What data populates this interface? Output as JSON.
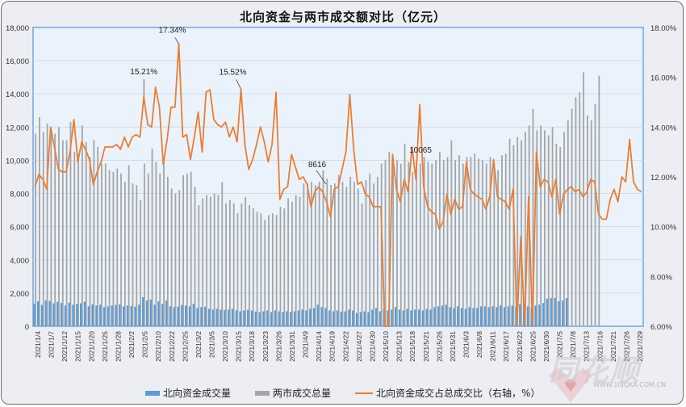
{
  "title": "北向资金与两市成交额对比（亿元）",
  "legend": [
    {
      "label": "北向资金成交量",
      "color": "#5b9bd5",
      "type": "bar"
    },
    {
      "label": "两市成交总量",
      "color": "#a5a5a5",
      "type": "bar"
    },
    {
      "label": "北向资金成交占总成交比（右轴，%）",
      "color": "#ed7d31",
      "type": "line"
    }
  ],
  "watermark": {
    "brand": "同花顺",
    "url": "WWW.10JQKA.COM.CN"
  },
  "chart_data": {
    "type": "bar+line",
    "title": "北向资金与两市成交额对比（亿元）",
    "xlabel": "",
    "ylabel": "",
    "y_left": {
      "ticks": [
        "0",
        "2,000",
        "4,000",
        "6,000",
        "8,000",
        "10,000",
        "12,000",
        "14,000",
        "16,000",
        "18,000"
      ],
      "range": [
        0,
        18000
      ]
    },
    "y_right": {
      "ticks": [
        "6.00%",
        "8.00%",
        "10.00%",
        "12.00%",
        "14.00%",
        "16.00%",
        "18.00%"
      ],
      "range": [
        6,
        18
      ]
    },
    "x_tick_labels": [
      "2021/1/4",
      "2021/1/7",
      "2021/1/12",
      "2021/1/15",
      "2021/1/20",
      "2021/1/25",
      "2021/1/28",
      "2021/2/2",
      "2021/2/5",
      "2021/2/10",
      "2021/2/22",
      "2021/2/25",
      "2021/3/2",
      "2021/3/5",
      "2021/3/10",
      "2021/3/15",
      "2021/3/18",
      "2021/3/23",
      "2021/3/26",
      "2021/3/31",
      "2021/4/9",
      "2021/4/14",
      "2021/4/19",
      "2021/4/22",
      "2021/4/27",
      "2021/4/30",
      "2021/5/10",
      "2021/5/13",
      "2021/5/18",
      "2021/5/21",
      "2021/5/26",
      "2021/5/31",
      "2021/6/3",
      "2021/6/8",
      "2021/6/11",
      "2021/6/17",
      "2021/6/22",
      "2021/6/25",
      "2021/6/30",
      "2021/7/5",
      "2021/7/8",
      "2021/7/13",
      "2021/7/16",
      "2021/7/21",
      "2021/7/26",
      "2021/7/29"
    ],
    "annotations": [
      {
        "text": "15.21%",
        "series": "ratio"
      },
      {
        "text": "17.34%",
        "series": "ratio"
      },
      {
        "text": "15.52%",
        "series": "ratio"
      },
      {
        "text": "8616",
        "series": "total"
      },
      {
        "text": "10065",
        "series": "total"
      }
    ],
    "series": [
      {
        "name": "北向资金成交量",
        "axis": "left",
        "values": [
          1350,
          1500,
          1280,
          1560,
          1520,
          1380,
          1480,
          1400,
          1250,
          1420,
          1300,
          1350,
          1380,
          1480,
          1200,
          1320,
          1250,
          1300,
          1150,
          1200,
          1250,
          1280,
          1320,
          1200,
          1250,
          1220,
          1180,
          1300,
          1750,
          1550,
          1600,
          1300,
          1500,
          1350,
          1550,
          1200,
          1150,
          1180,
          1280,
          1250,
          1200,
          1350,
          1100,
          1150,
          1180,
          1050,
          1000,
          1050,
          1000,
          980,
          1000,
          1050,
          950,
          900,
          950,
          1000,
          950,
          880,
          850,
          900,
          950,
          850,
          950,
          900,
          850,
          900,
          850,
          900,
          950,
          1000,
          950,
          1050,
          1100,
          1300,
          1150,
          1100,
          950,
          900,
          950,
          880,
          900,
          1000,
          950,
          800,
          850,
          900,
          850,
          1000,
          1100,
          900,
          1050,
          950,
          1000,
          1150,
          1000,
          950,
          1050,
          950,
          1000,
          1000,
          950,
          1050,
          1000,
          1150,
          1200,
          1250,
          1300,
          1150,
          1100,
          1200,
          1100,
          1050,
          1150,
          1100,
          1100,
          1200,
          1200,
          1150,
          1200,
          1150,
          1250,
          1150,
          1200,
          1250,
          1200,
          1350,
          1350,
          1200,
          1150,
          1250,
          1300,
          1400,
          1650,
          1700,
          1700,
          1500,
          1550,
          1700
        ]
      },
      {
        "name": "两市成交总量",
        "axis": "left",
        "values": [
          11600,
          12600,
          11700,
          12200,
          11900,
          11600,
          12000,
          11200,
          11200,
          12300,
          10500,
          10400,
          12100,
          11100,
          10200,
          11200,
          10800,
          9800,
          9800,
          9400,
          9300,
          9500,
          9200,
          8700,
          9700,
          8600,
          8500,
          7600,
          9800,
          9200,
          10700,
          9900,
          9200,
          10100,
          9000,
          8300,
          8000,
          8200,
          9100,
          9200,
          9300,
          8400,
          7300,
          7700,
          7900,
          7800,
          8000,
          7900,
          8700,
          7400,
          7600,
          7400,
          6800,
          7400,
          7800,
          7300,
          7100,
          6900,
          6800,
          6400,
          6700,
          6800,
          6700,
          7200,
          7100,
          7700,
          7500,
          7900,
          7800,
          8600,
          8600,
          8700,
          8500,
          8700,
          9400,
          8900,
          8500,
          8600,
          9100,
          8700,
          8400,
          9000,
          8700,
          8300,
          7400,
          8800,
          9200,
          8600,
          9000,
          9800,
          10000,
          10500,
          10200,
          10000,
          9800,
          11000,
          9900,
          9300,
          10000,
          9800,
          10200,
          9900,
          9800,
          10000,
          10500,
          10000,
          10200,
          11200,
          10000,
          10300,
          9800,
          10200,
          10200,
          10400,
          10100,
          10000,
          9800,
          10200,
          9800,
          9400,
          10300,
          10400,
          11300,
          10900,
          11400,
          11200,
          11700,
          12100,
          13100,
          11800,
          12100,
          11800,
          11500,
          12000,
          11000,
          10800,
          11700,
          12400,
          13100,
          13800,
          14100,
          15300,
          12700,
          12400,
          13400,
          15100
        ]
      },
      {
        "name": "北向资金成交占总成交比（右轴，%）",
        "axis": "right",
        "values": [
          11.6,
          12.1,
          11.9,
          11.5,
          14.0,
          13.2,
          12.3,
          12.2,
          12.2,
          13.0,
          14.3,
          12.6,
          13.4,
          13.1,
          12.7,
          11.7,
          12.2,
          12.6,
          13.2,
          13.2,
          13.2,
          13.3,
          13.1,
          13.6,
          13.2,
          13.6,
          13.7,
          13.6,
          15.21,
          14.1,
          14.0,
          15.6,
          14.8,
          12.5,
          13.5,
          14.8,
          14.8,
          17.34,
          13.6,
          13.7,
          12.7,
          13.6,
          14.6,
          13.0,
          15.4,
          15.5,
          14.3,
          14.1,
          14.0,
          14.2,
          13.6,
          14.0,
          13.4,
          15.52,
          13.3,
          12.3,
          12.7,
          13.3,
          14.0,
          13.4,
          12.6,
          13.3,
          15.4,
          11.1,
          11.5,
          11.6,
          12.9,
          12.4,
          11.9,
          12.0,
          11.7,
          10.8,
          11.4,
          11.6,
          11.4,
          11.0,
          10.4,
          11.5,
          11.6,
          12.3,
          13.0,
          15.3,
          13.1,
          11.7,
          11.8,
          11.3,
          11.2,
          10.8,
          10.8,
          10.8,
          6.0,
          6.0,
          12.9,
          11.5,
          11.0,
          11.9,
          11.4,
          13.2,
          11.9,
          14.9,
          11.6,
          10.8,
          10.6,
          10.5,
          9.9,
          10.2,
          11.3,
          10.5,
          11.1,
          10.7,
          10.8,
          12.6,
          11.5,
          11.3,
          11.2,
          11.1,
          10.7,
          11.2,
          12.7,
          11.2,
          11.1,
          11.0,
          10.7,
          11.5,
          6.0,
          9.6,
          6.0,
          11.2,
          6.0,
          13.0,
          11.6,
          11.9,
          11.8,
          11.2,
          11.9,
          10.5,
          11.3,
          11.5,
          11.6,
          11.4,
          11.5,
          11.2,
          11.4,
          11.9,
          11.8,
          10.5,
          10.3,
          10.3,
          11.1,
          11.5,
          11.0,
          12.0,
          11.8,
          13.5,
          11.8,
          11.5,
          11.4
        ]
      }
    ]
  }
}
